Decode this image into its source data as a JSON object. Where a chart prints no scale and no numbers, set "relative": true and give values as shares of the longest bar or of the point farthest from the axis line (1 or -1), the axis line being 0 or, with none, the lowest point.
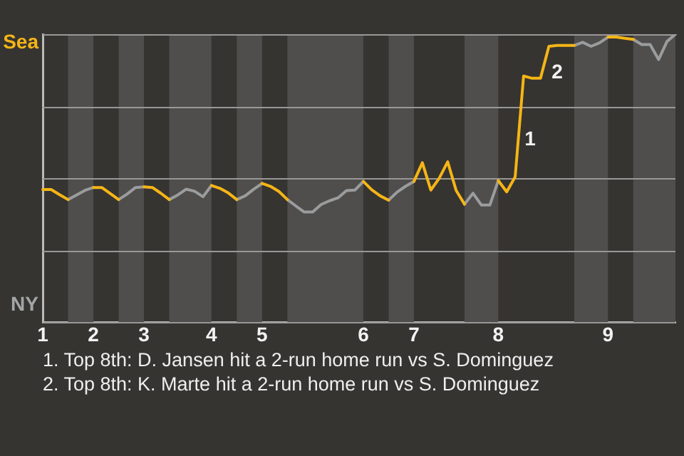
{
  "chart_data": {
    "type": "line",
    "relative": true,
    "categories": [
      "1",
      null,
      null,
      null,
      null,
      null,
      "2",
      null,
      null,
      null,
      null,
      null,
      "3",
      null,
      null,
      null,
      null,
      null,
      null,
      null,
      "4",
      null,
      null,
      null,
      null,
      null,
      "5",
      null,
      null,
      null,
      null,
      null,
      null,
      null,
      null,
      null,
      null,
      null,
      "6",
      null,
      null,
      null,
      null,
      null,
      "7",
      null,
      null,
      null,
      null,
      null,
      null,
      null,
      null,
      null,
      "8",
      null,
      null,
      null,
      null,
      null,
      null,
      null,
      null,
      null,
      null,
      null,
      null,
      "9",
      null,
      null,
      null,
      null,
      null,
      null,
      null,
      null
    ],
    "grid": "y",
    "legend": false,
    "marker": "none",
    "line_style": "solid",
    "series": [
      {
        "color": "#f5b516",
        "values": [
          0.461,
          0.461,
          0.443,
          0.426,
          null,
          null,
          0.468,
          0.468,
          0.447,
          0.426,
          null,
          null,
          0.47,
          0.468,
          0.448,
          0.426,
          null,
          null,
          null,
          null,
          0.475,
          0.465,
          0.449,
          0.426,
          null,
          null,
          0.482,
          0.472,
          0.454,
          0.426,
          null,
          null,
          null,
          null,
          null,
          null,
          null,
          null,
          0.489,
          0.46,
          0.439,
          0.424,
          null,
          null,
          0.489,
          0.554,
          0.459,
          0.5,
          0.557,
          0.458,
          0.41,
          null,
          null,
          null,
          0.492,
          0.453,
          0.505,
          0.855,
          0.847,
          0.847,
          0.958,
          0.961,
          0.961,
          0.961,
          null,
          null,
          null,
          0.99,
          0.99,
          0.986,
          0.982,
          null,
          null,
          null,
          null,
          null
        ]
      },
      {
        "color": "#9a9c9e",
        "values": [
          null,
          null,
          null,
          0.426,
          0.442,
          0.458,
          0.468,
          null,
          null,
          0.426,
          0.445,
          0.468,
          0.47,
          null,
          null,
          0.426,
          0.442,
          0.462,
          0.455,
          0.436,
          0.475,
          null,
          null,
          0.426,
          0.439,
          0.462,
          0.482,
          null,
          null,
          0.426,
          0.404,
          0.383,
          0.383,
          0.409,
          0.422,
          0.432,
          0.457,
          0.459,
          0.489,
          null,
          null,
          0.424,
          0.452,
          0.472,
          0.489,
          null,
          null,
          null,
          null,
          null,
          0.41,
          0.448,
          0.407,
          0.407,
          0.492,
          null,
          null,
          null,
          null,
          null,
          null,
          null,
          null,
          0.961,
          0.972,
          0.958,
          0.97,
          0.99,
          null,
          null,
          0.982,
          0.964,
          0.964,
          0.912,
          0.975,
          1.0
        ]
      }
    ],
    "annotations": [
      "Sea",
      "NY",
      "1",
      "2",
      "1. Top 8th: D. Jansen hit a 2-run home run vs S. Dominguez",
      "2. Top 8th: K. Marte hit a 2-run home run vs S. Dominguez"
    ]
  }
}
